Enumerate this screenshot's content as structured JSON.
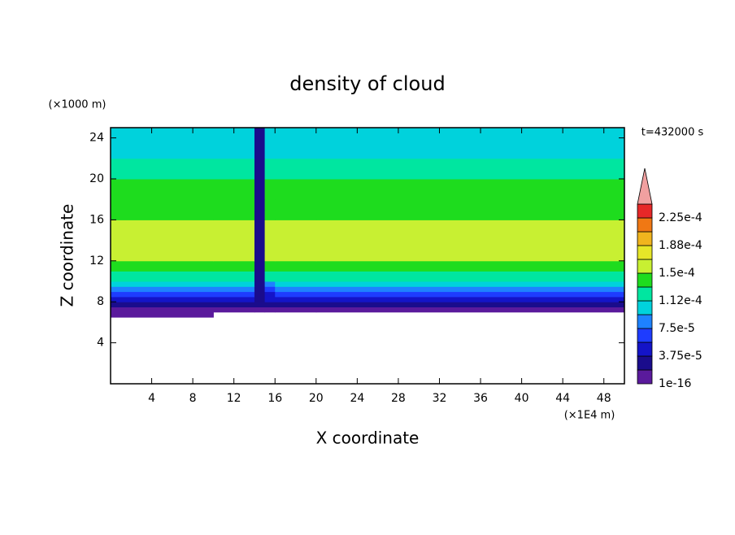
{
  "chart_data": {
    "type": "contour",
    "title": "density of cloud",
    "xlabel": "X coordinate",
    "ylabel": "Z coordinate",
    "xunit": "(×1E4 m)",
    "yunit": "(×1000 m)",
    "annotation": "t=432000 s",
    "xlim": [
      0,
      50
    ],
    "ylim": [
      0,
      25
    ],
    "xticks": [
      4,
      8,
      12,
      16,
      20,
      24,
      28,
      32,
      36,
      40,
      44,
      48
    ],
    "yticks": [
      4,
      8,
      12,
      16,
      20,
      24
    ],
    "xbins": [
      0,
      10,
      14,
      15,
      16,
      20,
      50
    ],
    "zbins": [
      0,
      6.5,
      7,
      7.5,
      8,
      8.5,
      9,
      9.5,
      10,
      11,
      12,
      13,
      16,
      17,
      18,
      20,
      22,
      25
    ],
    "values": [
      [
        null,
        null,
        null,
        null,
        null,
        null
      ],
      [
        5e-06,
        null,
        null,
        null,
        null,
        null
      ],
      [
        1e-05,
        5e-06,
        5e-06,
        5e-06,
        5e-06,
        5e-06
      ],
      [
        2.5e-05,
        2e-05,
        3e-05,
        2e-05,
        2e-05,
        2e-05
      ],
      [
        4.5e-05,
        4.5e-05,
        3e-05,
        4e-05,
        4.5e-05,
        4.5e-05
      ],
      [
        6.5e-05,
        6.5e-05,
        3e-05,
        5e-05,
        6e-05,
        6.5e-05
      ],
      [
        8.5e-05,
        8.5e-05,
        3e-05,
        7e-05,
        8e-05,
        8.5e-05
      ],
      [
        0.0001,
        0.0001,
        3e-05,
        9e-05,
        0.0001,
        0.0001
      ],
      [
        0.00012,
        0.00012,
        3e-05,
        0.00012,
        0.00012,
        0.00012
      ],
      [
        0.00014,
        0.00014,
        3e-05,
        0.00014,
        0.00014,
        0.00014
      ],
      [
        0.000155,
        0.000155,
        3e-05,
        0.00015,
        0.00015,
        0.000155
      ],
      [
        0.000165,
        0.00016,
        3e-05,
        0.00015,
        0.00015,
        0.00016
      ],
      [
        0.000145,
        0.000145,
        3e-05,
        0.000145,
        0.000145,
        0.000145
      ],
      [
        0.00014,
        0.00014,
        3e-05,
        0.00014,
        0.00014,
        0.00014
      ],
      [
        0.000135,
        0.000135,
        3e-05,
        0.000135,
        0.000135,
        0.000135
      ],
      [
        0.00012,
        0.00012,
        3e-05,
        0.00012,
        0.00012,
        0.00012
      ],
      [
        0.0001,
        0.0001,
        3e-05,
        0.0001,
        0.0001,
        0.0001
      ]
    ],
    "levels": [
      1e-16,
      1.875e-05,
      3.75e-05,
      5.625e-05,
      7.5e-05,
      9.375e-05,
      0.0001125,
      0.00013125,
      0.00015,
      0.00016875,
      0.0001875,
      0.00020625,
      0.000225,
      0.00024375
    ],
    "level_labels": [
      "1e-16",
      null,
      "3.75e-5",
      null,
      "7.5e-5",
      null,
      "1.12e-4",
      null,
      "1.5e-4",
      null,
      "1.88e-4",
      null,
      "2.25e-4",
      null
    ],
    "colors": [
      "#5a1a9c",
      "#1a0c8c",
      "#1414c8",
      "#1e3cff",
      "#1e82ff",
      "#00d2dc",
      "#00e6a0",
      "#1edc1e",
      "#c8f032",
      "#e6e628",
      "#f0b41e",
      "#f07814",
      "#e62828",
      "#f0a0a0"
    ]
  }
}
